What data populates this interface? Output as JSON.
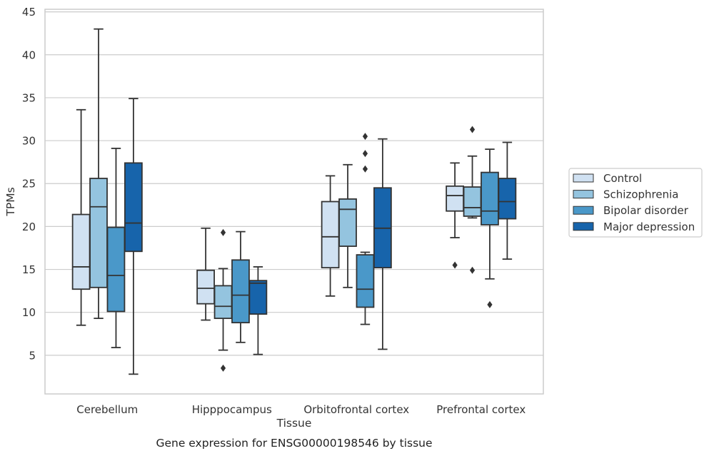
{
  "caption": "Gene expression for ENSG00000198546 by tissue",
  "chart_data": {
    "type": "box",
    "title": "",
    "xlabel": "Tissue",
    "ylabel": "TPMs",
    "ylim": [
      0.5,
      45.3
    ],
    "yticks": [
      5,
      10,
      15,
      20,
      25,
      30,
      35,
      40,
      45
    ],
    "grid": "horizontal",
    "legend_position": "right",
    "categories": [
      "Cerebellum",
      "Hipppocampus",
      "Orbitofrontal cortex",
      "Prefrontal cortex"
    ],
    "series": [
      {
        "name": "Control",
        "color": "#d0e1f2",
        "boxes": [
          {
            "whisker_low": 8.5,
            "q1": 12.7,
            "median": 15.3,
            "q3": 21.4,
            "whisker_high": 33.6,
            "outliers": []
          },
          {
            "whisker_low": 9.1,
            "q1": 11.0,
            "median": 12.8,
            "q3": 14.9,
            "whisker_high": 19.8,
            "outliers": []
          },
          {
            "whisker_low": 11.9,
            "q1": 15.2,
            "median": 18.8,
            "q3": 22.9,
            "whisker_high": 25.9,
            "outliers": []
          },
          {
            "whisker_low": 18.7,
            "q1": 21.8,
            "median": 23.6,
            "q3": 24.7,
            "whisker_high": 27.4,
            "outliers": [
              15.5
            ]
          }
        ]
      },
      {
        "name": "Schizophrenia",
        "color": "#94c4df",
        "boxes": [
          {
            "whisker_low": 9.3,
            "q1": 12.9,
            "median": 22.3,
            "q3": 25.6,
            "whisker_high": 43.0,
            "outliers": []
          },
          {
            "whisker_low": 5.6,
            "q1": 9.3,
            "median": 10.7,
            "q3": 13.1,
            "whisker_high": 15.1,
            "outliers": [
              3.5,
              19.3
            ]
          },
          {
            "whisker_low": 12.9,
            "q1": 17.7,
            "median": 22.0,
            "q3": 23.2,
            "whisker_high": 27.2,
            "outliers": []
          },
          {
            "whisker_low": 21.0,
            "q1": 21.2,
            "median": 22.2,
            "q3": 24.6,
            "whisker_high": 28.2,
            "outliers": [
              14.9,
              31.3
            ]
          }
        ]
      },
      {
        "name": "Bipolar disorder",
        "color": "#4a98c9",
        "boxes": [
          {
            "whisker_low": 5.9,
            "q1": 10.1,
            "median": 14.3,
            "q3": 19.9,
            "whisker_high": 29.1,
            "outliers": []
          },
          {
            "whisker_low": 6.5,
            "q1": 8.8,
            "median": 12.0,
            "q3": 16.1,
            "whisker_high": 19.4,
            "outliers": []
          },
          {
            "whisker_low": 8.6,
            "q1": 10.6,
            "median": 12.7,
            "q3": 16.7,
            "whisker_high": 17.0,
            "outliers": [
              26.7,
              28.5,
              30.5
            ]
          },
          {
            "whisker_low": 13.9,
            "q1": 20.2,
            "median": 21.8,
            "q3": 26.3,
            "whisker_high": 29.0,
            "outliers": [
              10.9
            ]
          }
        ]
      },
      {
        "name": "Major depression",
        "color": "#1764ab",
        "boxes": [
          {
            "whisker_low": 2.8,
            "q1": 17.1,
            "median": 20.4,
            "q3": 27.4,
            "whisker_high": 34.9,
            "outliers": []
          },
          {
            "whisker_low": 5.1,
            "q1": 9.8,
            "median": 13.4,
            "q3": 13.7,
            "whisker_high": 15.3,
            "outliers": []
          },
          {
            "whisker_low": 5.7,
            "q1": 15.2,
            "median": 19.8,
            "q3": 24.5,
            "whisker_high": 30.2,
            "outliers": []
          },
          {
            "whisker_low": 16.2,
            "q1": 20.9,
            "median": 22.9,
            "q3": 25.6,
            "whisker_high": 29.8,
            "outliers": []
          }
        ]
      }
    ]
  }
}
